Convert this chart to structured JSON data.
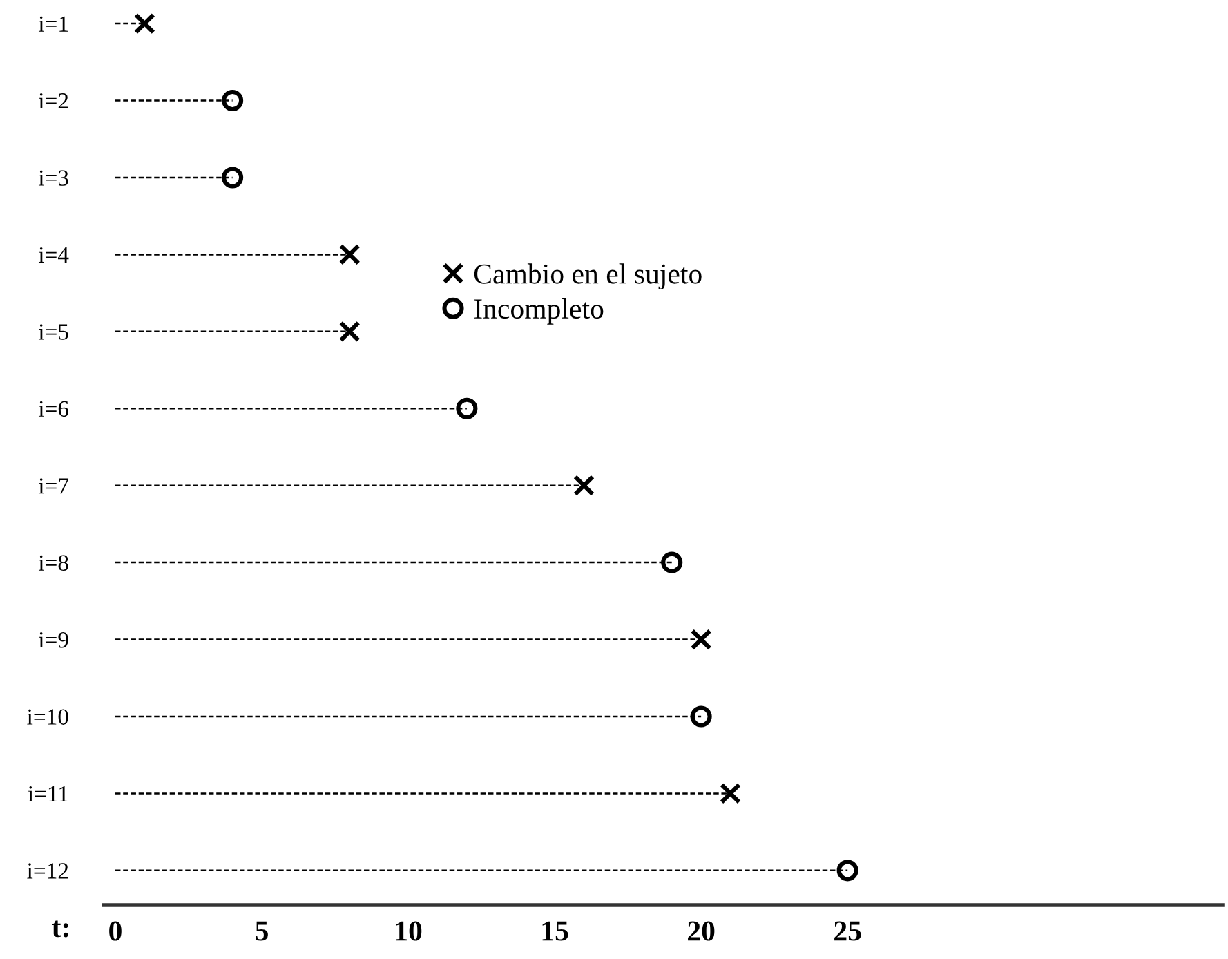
{
  "chart_data": {
    "type": "lollipop",
    "orientation": "horizontal",
    "categories": [
      "i=1",
      "i=2",
      "i=3",
      "i=4",
      "i=5",
      "i=6",
      "i=7",
      "i=8",
      "i=9",
      "i=10",
      "i=11",
      "i=12"
    ],
    "series": [
      {
        "name": "Cambio en el sujeto",
        "color": "#000000",
        "marker": "cross",
        "values": [
          1,
          null,
          null,
          8,
          8,
          null,
          16,
          null,
          20,
          null,
          21,
          null
        ]
      },
      {
        "name": "Incompleto",
        "color": "#000000",
        "marker": "circle",
        "values": [
          null,
          4,
          4,
          null,
          null,
          12,
          null,
          19,
          null,
          20,
          null,
          25
        ]
      }
    ],
    "xlabel": "t:",
    "xlim": [
      -0.4,
      37.8
    ],
    "xticks": [
      0,
      5,
      10,
      15,
      20,
      25
    ],
    "line_style": "dashed",
    "legend": "top",
    "grid": false
  }
}
